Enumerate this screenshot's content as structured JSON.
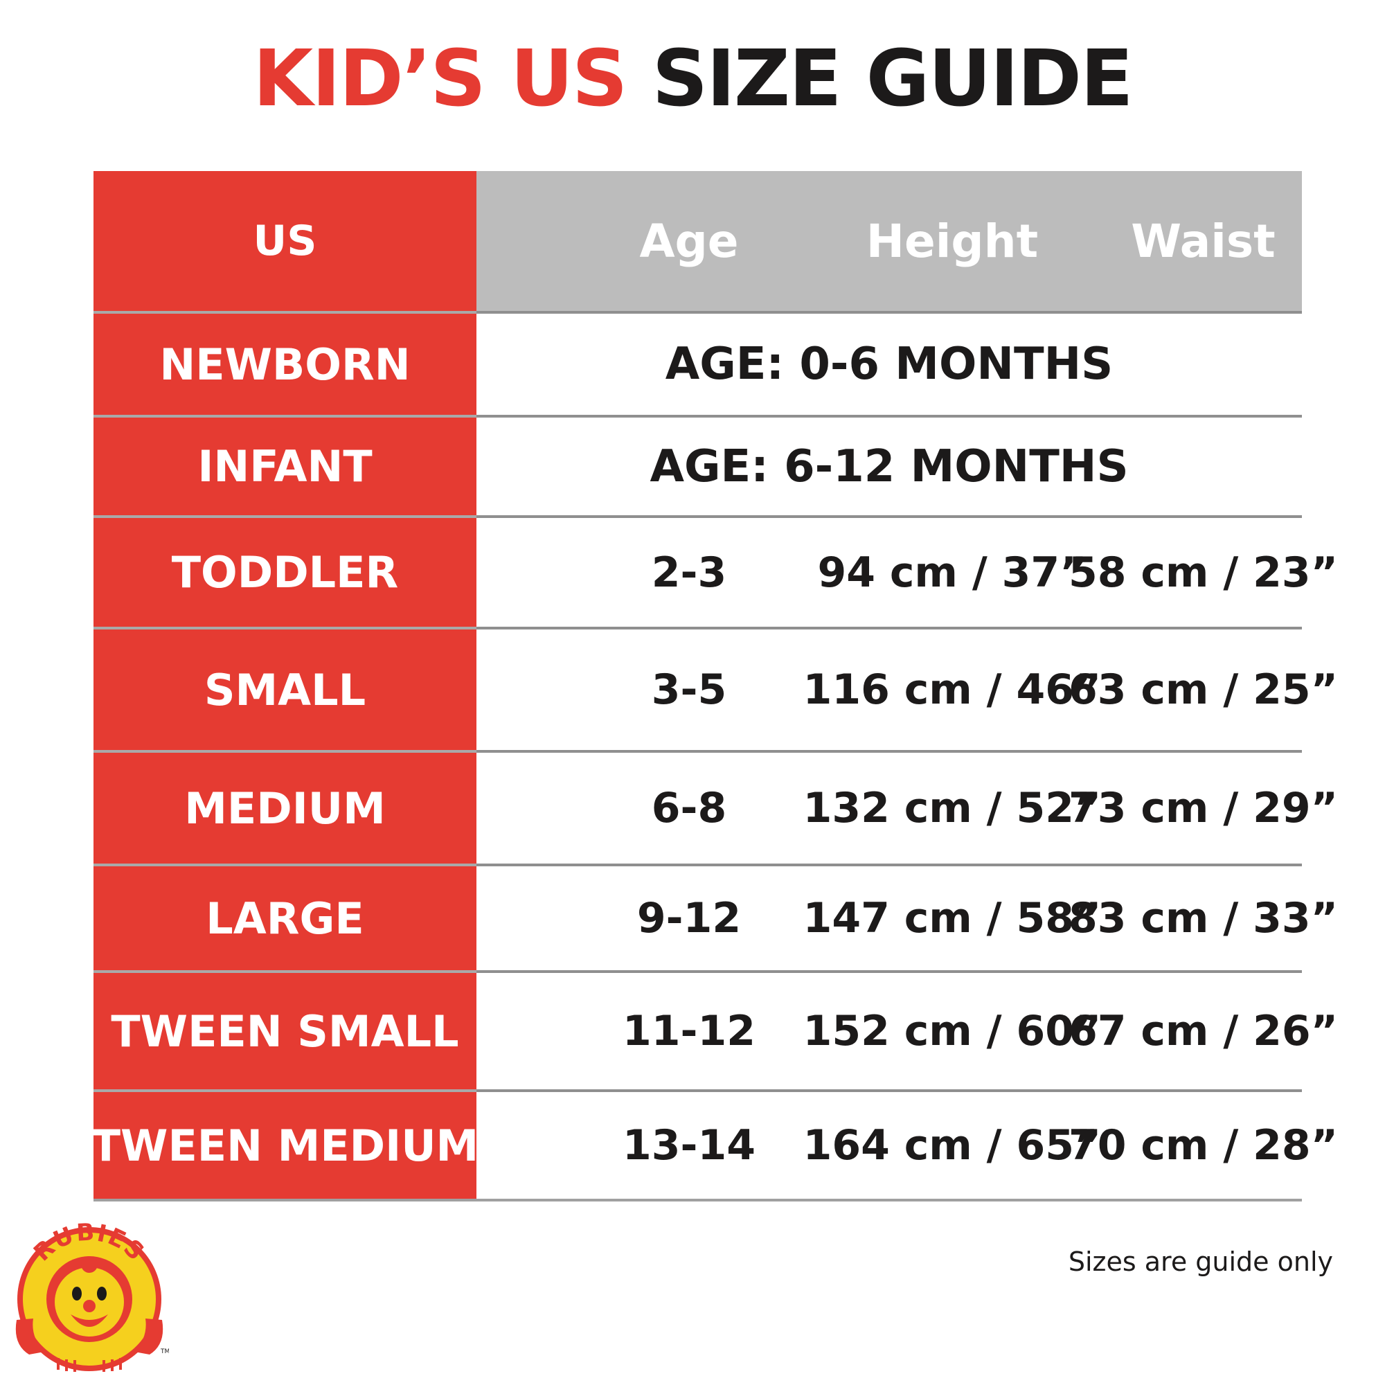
{
  "title": {
    "part_red": "KID’S US",
    "part_black": "SIZE GUIDE"
  },
  "table": {
    "headers": {
      "size": "US",
      "age": "Age",
      "height": "Height",
      "waist": "Waist"
    },
    "rows": [
      {
        "size": "NEWBORN",
        "span_text": "AGE: 0-6 MONTHS"
      },
      {
        "size": "INFANT",
        "span_text": "AGE: 6-12 MONTHS"
      },
      {
        "size": "TODDLER",
        "age": "2-3",
        "height": "94 cm / 37”",
        "waist": "58 cm / 23”"
      },
      {
        "size": "SMALL",
        "age": "3-5",
        "height": "116 cm / 46”",
        "waist": "63 cm / 25”"
      },
      {
        "size": "MEDIUM",
        "age": "6-8",
        "height": "132 cm / 52”",
        "waist": "73 cm / 29”"
      },
      {
        "size": "LARGE",
        "age": "9-12",
        "height": "147 cm / 58”",
        "waist": "83 cm / 33”"
      },
      {
        "size": "TWEEN SMALL",
        "age": "11-12",
        "height": "152 cm / 60”",
        "waist": "67 cm / 26”"
      },
      {
        "size": "TWEEN MEDIUM",
        "age": "13-14",
        "height": "164 cm / 65”",
        "waist": "70 cm / 28”"
      }
    ]
  },
  "logo": {
    "text": "RUBIES",
    "trademark": "TM",
    "colors": {
      "yellow": "#f5d01e",
      "red": "#e53b32"
    }
  },
  "note": "Sizes are guide only",
  "colors": {
    "accent_red": "#e53b32",
    "header_gray": "#bcbcbc",
    "text_dark": "#1c1a1a",
    "divider": "#8f8f8f"
  }
}
